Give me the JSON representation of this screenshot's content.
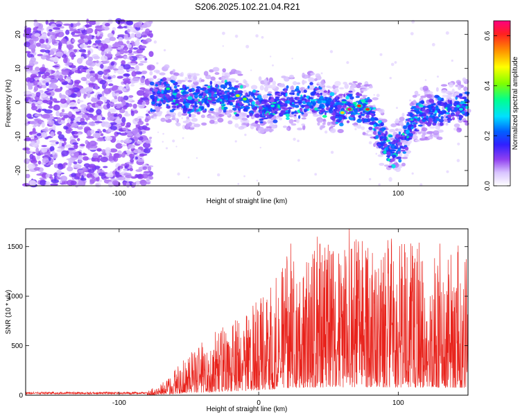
{
  "title": "S206.2025.102.21.04.R21",
  "chart_data": [
    {
      "type": "heatmap",
      "name": "spectrogram",
      "xlabel": "Height of straight line (km)",
      "ylabel": "Frequency (Hz)",
      "xlim": [
        -167,
        150
      ],
      "ylim": [
        -24.5,
        24
      ],
      "x_ticks": [
        -100,
        0,
        100
      ],
      "y_ticks": [
        -20,
        -10,
        0,
        10,
        20
      ],
      "colorbar": {
        "label": "Normalized spectral amplitude",
        "range": [
          0.0,
          0.66
        ],
        "ticks": [
          0.0,
          0.2,
          0.4,
          0.6
        ],
        "colors": [
          "#ffffff",
          "#e0ccff",
          "#8f3cf0",
          "#2020ff",
          "#00ffff",
          "#00ff80",
          "#ffff00",
          "#ff9000",
          "#ff2020",
          "#ff0080"
        ]
      },
      "noise_region": {
        "x_range": [
          -167,
          -77
        ],
        "y_range": [
          -24.5,
          24
        ]
      },
      "signal_band": {
        "center_track": [
          [
            -77,
            2
          ],
          [
            -70,
            3
          ],
          [
            -60,
            2
          ],
          [
            -50,
            0
          ],
          [
            -40,
            1
          ],
          [
            -30,
            2
          ],
          [
            -20,
            2
          ],
          [
            -10,
            0
          ],
          [
            0,
            -1
          ],
          [
            10,
            -1
          ],
          [
            20,
            0
          ],
          [
            30,
            0
          ],
          [
            40,
            1
          ],
          [
            50,
            -1
          ],
          [
            60,
            -2
          ],
          [
            70,
            -1
          ],
          [
            80,
            -3
          ],
          [
            85,
            -8
          ],
          [
            90,
            -12
          ],
          [
            95,
            -15
          ],
          [
            100,
            -13
          ],
          [
            105,
            -10
          ],
          [
            110,
            -5
          ],
          [
            120,
            -3
          ],
          [
            130,
            -3
          ],
          [
            140,
            -2
          ],
          [
            150,
            -1
          ]
        ],
        "half_width_hz": 5,
        "hotspots": [
          {
            "x": 65,
            "y": -2,
            "value": 0.66
          },
          {
            "x": 72,
            "y": -1,
            "value": 0.6
          },
          {
            "x": 78,
            "y": -2,
            "value": 0.6
          },
          {
            "x": 60,
            "y": -3,
            "value": 0.5
          },
          {
            "x": -15,
            "y": 2,
            "value": 0.45
          },
          {
            "x": -10,
            "y": 1,
            "value": 0.4
          },
          {
            "x": -65,
            "y": 4,
            "value": 0.35
          },
          {
            "x": 10,
            "y": -1,
            "value": 0.3
          },
          {
            "x": 145,
            "y": -2,
            "value": 0.3
          }
        ]
      }
    },
    {
      "type": "line",
      "name": "snr",
      "xlabel": "Height of straight line (km)",
      "ylabel": "SNR (10 * v/v)",
      "xlim": [
        -167,
        150
      ],
      "ylim": [
        0,
        1680
      ],
      "x_ticks": [
        -100,
        0,
        100
      ],
      "y_ticks": [
        0,
        500,
        1000,
        1500
      ],
      "line_color": "#e8231c",
      "envelope": [
        [
          -167,
          30
        ],
        [
          -90,
          30
        ],
        [
          -80,
          40
        ],
        [
          -70,
          120
        ],
        [
          -60,
          260
        ],
        [
          -50,
          420
        ],
        [
          -40,
          550
        ],
        [
          -30,
          650
        ],
        [
          -20,
          750
        ],
        [
          -10,
          850
        ],
        [
          0,
          1000
        ],
        [
          10,
          1150
        ],
        [
          20,
          1400
        ],
        [
          30,
          1500
        ],
        [
          40,
          1550
        ],
        [
          50,
          1580
        ],
        [
          60,
          1580
        ],
        [
          70,
          1600
        ],
        [
          80,
          1600
        ],
        [
          90,
          1580
        ],
        [
          100,
          1550
        ],
        [
          110,
          1530
        ],
        [
          120,
          1530
        ],
        [
          130,
          1500
        ],
        [
          140,
          1500
        ],
        [
          150,
          1500
        ]
      ],
      "peaks": [
        [
          23,
          1530
        ],
        [
          42,
          1600
        ],
        [
          65,
          1680
        ],
        [
          95,
          1580
        ],
        [
          115,
          1540
        ],
        [
          130,
          1530
        ],
        [
          143,
          1510
        ]
      ]
    }
  ]
}
